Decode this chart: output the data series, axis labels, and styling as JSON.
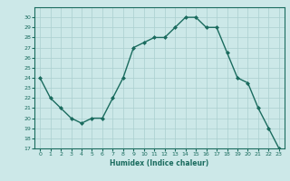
{
  "x": [
    0,
    1,
    2,
    3,
    4,
    5,
    6,
    7,
    8,
    9,
    10,
    11,
    12,
    13,
    14,
    15,
    16,
    17,
    18,
    19,
    20,
    21,
    22,
    23
  ],
  "y": [
    24,
    22,
    21,
    20,
    19.5,
    20,
    20,
    22,
    24,
    27,
    27.5,
    28,
    28,
    29,
    30,
    30,
    29,
    29,
    26.5,
    24,
    23.5,
    21,
    19,
    17
  ],
  "title": "",
  "xlabel": "Humidex (Indice chaleur)",
  "ylabel": "",
  "line_color": "#1a6b5e",
  "marker": "D",
  "marker_size": 2,
  "bg_color": "#cce8e8",
  "grid_color": "#aacfcf",
  "tick_color": "#1a6b5e",
  "label_color": "#1a6b5e",
  "ylim": [
    17,
    31
  ],
  "xlim": [
    -0.5,
    23.5
  ],
  "yticks": [
    17,
    18,
    19,
    20,
    21,
    22,
    23,
    24,
    25,
    26,
    27,
    28,
    29,
    30
  ],
  "xticks": [
    0,
    1,
    2,
    3,
    4,
    5,
    6,
    7,
    8,
    9,
    10,
    11,
    12,
    13,
    14,
    15,
    16,
    17,
    18,
    19,
    20,
    21,
    22,
    23
  ]
}
